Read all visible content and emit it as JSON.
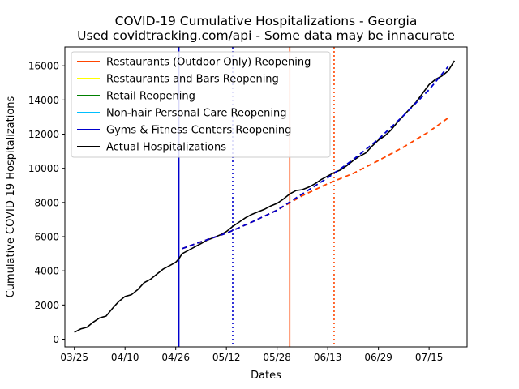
{
  "chart_data": {
    "type": "line",
    "title": "COVID-19 Cumulative Hospitalizations - Georgia",
    "subtitle": "Used covidtracking.com/api - Some data may be innacurate",
    "xlabel": "Dates",
    "ylabel": "Cumulative COVID-19 Hospitalizations",
    "x_ticks": [
      "03/25",
      "04/10",
      "04/26",
      "05/12",
      "05/28",
      "06/13",
      "06/29",
      "07/15"
    ],
    "y_ticks": [
      "0",
      "2000",
      "4000",
      "6000",
      "8000",
      "10000",
      "12000",
      "14000",
      "16000"
    ],
    "xlim": [
      "03/22",
      "07/27"
    ],
    "ylim": [
      -450,
      17100
    ],
    "grid": false,
    "legend_position": "upper-left",
    "series": [
      {
        "name": "Actual Hospitalizations",
        "color": "#000000",
        "style": "solid",
        "x": [
          "03/25",
          "03/27",
          "03/29",
          "03/31",
          "04/02",
          "04/04",
          "04/06",
          "04/07",
          "04/08",
          "04/10",
          "04/12",
          "04/14",
          "04/16",
          "04/18",
          "04/20",
          "04/22",
          "04/24",
          "04/26",
          "04/27",
          "04/28",
          "04/30",
          "05/02",
          "05/04",
          "05/06",
          "05/08",
          "05/10",
          "05/12",
          "05/14",
          "05/16",
          "05/18",
          "05/20",
          "05/22",
          "05/24",
          "05/26",
          "05/28",
          "05/30",
          "06/01",
          "06/03",
          "06/05",
          "06/07",
          "06/09",
          "06/11",
          "06/13",
          "06/15",
          "06/17",
          "06/19",
          "06/21",
          "06/23",
          "06/25",
          "06/27",
          "06/29",
          "07/01",
          "07/03",
          "07/05",
          "07/07",
          "07/09",
          "07/11",
          "07/13",
          "07/15",
          "07/17",
          "07/19",
          "07/21",
          "07/23"
        ],
        "values": [
          400,
          600,
          700,
          1000,
          1250,
          1350,
          1800,
          2000,
          2200,
          2500,
          2600,
          2900,
          3300,
          3500,
          3800,
          4100,
          4300,
          4500,
          4700,
          5000,
          5200,
          5400,
          5600,
          5800,
          5950,
          6100,
          6300,
          6600,
          6850,
          7100,
          7300,
          7450,
          7600,
          7800,
          7950,
          8200,
          8500,
          8700,
          8750,
          8900,
          9100,
          9350,
          9550,
          9750,
          9900,
          10150,
          10450,
          10700,
          10900,
          11300,
          11650,
          11900,
          12250,
          12700,
          13100,
          13500,
          13900,
          14400,
          14900,
          15200,
          15400,
          15700,
          16300
        ]
      },
      {
        "name": "Restaurants (Outdoor Only) Reopening",
        "color": "#ff4500",
        "style": "dashed-projection",
        "x": [
          "04/28",
          "05/04",
          "05/12",
          "05/20",
          "05/28",
          "06/05",
          "06/13",
          "06/21",
          "06/29",
          "07/07",
          "07/15",
          "07/21"
        ],
        "values": [
          5300,
          5700,
          6200,
          6850,
          7550,
          8400,
          9100,
          9700,
          10450,
          11250,
          12150,
          12950
        ]
      },
      {
        "name": "Gyms & Fitness Centers Reopening",
        "color": "#0000cd",
        "style": "dashed-projection",
        "x": [
          "04/28",
          "05/04",
          "05/12",
          "05/20",
          "05/28",
          "06/05",
          "06/13",
          "06/21",
          "06/29",
          "07/07",
          "07/15",
          "07/21"
        ],
        "values": [
          5300,
          5700,
          6200,
          6850,
          7550,
          8500,
          9450,
          10500,
          11700,
          13100,
          14600,
          15950
        ]
      },
      {
        "name": "Restaurants and Bars Reopening",
        "color": "#ffff00",
        "style": "solid",
        "x": [],
        "values": []
      },
      {
        "name": "Retail Reopening",
        "color": "#008000",
        "style": "solid",
        "x": [],
        "values": []
      },
      {
        "name": "Non-hair Personal Care Reopening",
        "color": "#00bfff",
        "style": "solid",
        "x": [],
        "values": []
      }
    ],
    "reference_lines": [
      {
        "x": "04/27",
        "color": "#0000cd",
        "style": "solid"
      },
      {
        "x": "05/14",
        "color": "#0000cd",
        "style": "dotted"
      },
      {
        "x": "06/01",
        "color": "#ff4500",
        "style": "solid"
      },
      {
        "x": "06/15",
        "color": "#ff4500",
        "style": "dotted"
      }
    ],
    "legend": [
      {
        "label": "Restaurants (Outdoor Only) Reopening",
        "color": "#ff4500"
      },
      {
        "label": "Restaurants and Bars Reopening",
        "color": "#ffff00"
      },
      {
        "label": "Retail Reopening",
        "color": "#008000"
      },
      {
        "label": "Non-hair Personal Care Reopening",
        "color": "#00bfff"
      },
      {
        "label": "Gyms & Fitness Centers Reopening",
        "color": "#0000cd"
      },
      {
        "label": "Actual Hospitalizations",
        "color": "#000000"
      }
    ]
  }
}
